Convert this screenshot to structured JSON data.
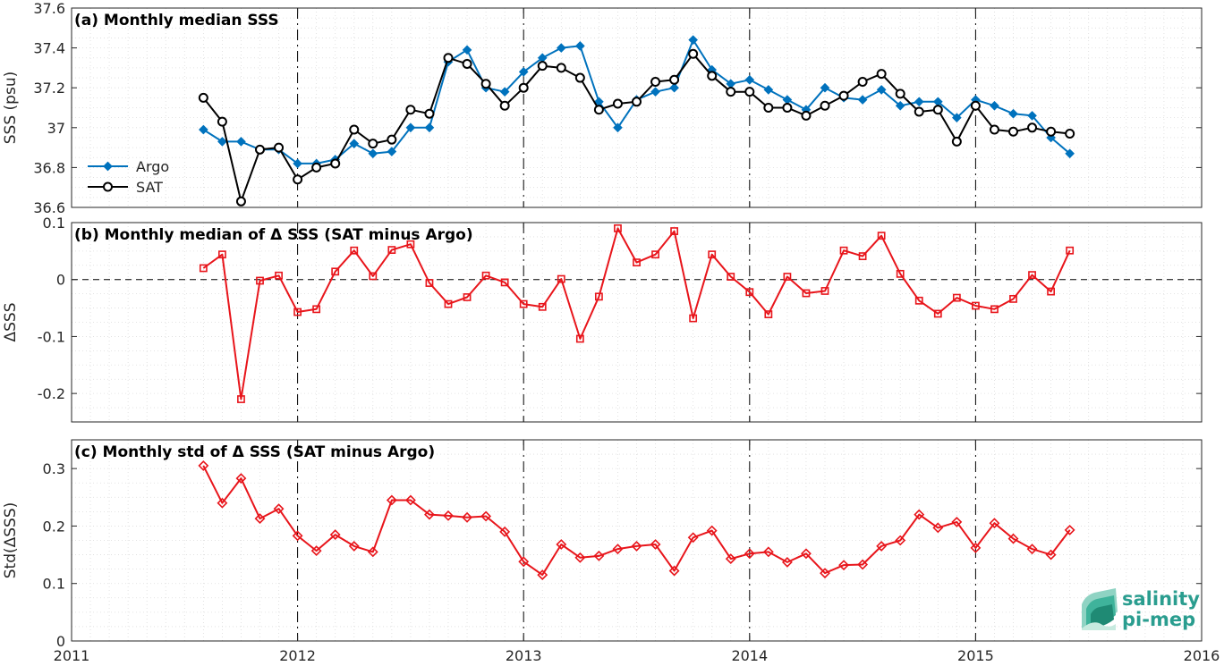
{
  "chart_data": [
    {
      "type": "line",
      "title": "(a) Monthly median SSS",
      "ylabel": "SSS (psu)",
      "xlim": [
        2011,
        2016
      ],
      "ylim": [
        36.6,
        37.6
      ],
      "yticks": [
        "36.6",
        "36.8",
        "37",
        "37.2",
        "37.4",
        "37.6"
      ],
      "legend": "left",
      "series": [
        {
          "name": "Argo",
          "color": "#0072BD",
          "marker": "diamond",
          "values": [
            36.99,
            36.93,
            36.93,
            36.89,
            36.89,
            36.82,
            36.82,
            36.84,
            36.92,
            36.87,
            36.88,
            37.0,
            37.0,
            37.33,
            37.39,
            37.2,
            37.18,
            37.28,
            37.35,
            37.4,
            37.41,
            37.13,
            37.0,
            37.14,
            37.18,
            37.2,
            37.44,
            37.29,
            37.22,
            37.24,
            37.19,
            37.14,
            37.09,
            37.2,
            37.15,
            37.14,
            37.19,
            37.11,
            37.13,
            37.13,
            37.05,
            37.14,
            37.11,
            37.07,
            37.06,
            36.95,
            36.87
          ]
        },
        {
          "name": "SAT",
          "color": "#000000",
          "marker": "circle",
          "values": [
            37.15,
            37.03,
            36.63,
            36.89,
            36.9,
            36.74,
            36.8,
            36.82,
            36.99,
            36.92,
            36.94,
            37.09,
            37.07,
            37.35,
            37.32,
            37.22,
            37.11,
            37.2,
            37.31,
            37.3,
            37.25,
            37.09,
            37.12,
            37.13,
            37.23,
            37.24,
            37.37,
            37.26,
            37.18,
            37.18,
            37.1,
            37.1,
            37.06,
            37.11,
            37.16,
            37.23,
            37.27,
            37.17,
            37.08,
            37.09,
            36.93,
            37.11,
            36.99,
            36.98,
            37.0,
            36.98,
            36.97
          ]
        }
      ]
    },
    {
      "type": "line",
      "title": "(b) Monthly median of Δ SSS (SAT minus Argo)",
      "ylabel": "ΔSSS",
      "xlim": [
        2011,
        2016
      ],
      "ylim": [
        -0.25,
        0.1
      ],
      "yticks": [
        "-0.2",
        "-0.1",
        "0",
        "0.1"
      ],
      "zero_line": true,
      "series": [
        {
          "name": "",
          "color": "#E8151B",
          "marker": "square",
          "values": [
            0.02,
            0.044,
            -0.21,
            -0.002,
            0.007,
            -0.057,
            -0.052,
            0.014,
            0.051,
            0.006,
            0.052,
            0.062,
            -0.006,
            -0.043,
            -0.031,
            0.007,
            -0.005,
            -0.043,
            -0.048,
            0.001,
            -0.104,
            -0.03,
            0.09,
            0.03,
            0.044,
            0.085,
            -0.068,
            0.044,
            0.005,
            -0.022,
            -0.061,
            0.005,
            -0.024,
            -0.02,
            0.051,
            0.041,
            0.077,
            0.01,
            -0.037,
            -0.06,
            -0.032,
            -0.046,
            -0.052,
            -0.034,
            0.008,
            -0.021,
            0.051
          ]
        }
      ]
    },
    {
      "type": "line",
      "title": "(c) Monthly std of Δ SSS (SAT minus Argo)",
      "ylabel": "Std(ΔSSS)",
      "xlim": [
        2011,
        2016
      ],
      "ylim": [
        0,
        0.35
      ],
      "yticks": [
        "0",
        "0.1",
        "0.2",
        "0.3"
      ],
      "xticks": [
        "2011",
        "2012",
        "2013",
        "2014",
        "2015",
        "2016"
      ],
      "series": [
        {
          "name": "",
          "color": "#E8151B",
          "marker": "diamond",
          "values": [
            0.305,
            0.24,
            0.283,
            0.213,
            0.23,
            0.183,
            0.157,
            0.185,
            0.165,
            0.155,
            0.245,
            0.245,
            0.22,
            0.218,
            0.215,
            0.217,
            0.19,
            0.138,
            0.115,
            0.168,
            0.145,
            0.148,
            0.16,
            0.165,
            0.168,
            0.122,
            0.18,
            0.192,
            0.143,
            0.152,
            0.155,
            0.137,
            0.152,
            0.118,
            0.132,
            0.133,
            0.165,
            0.175,
            0.22,
            0.197,
            0.207,
            0.162,
            0.205,
            0.178,
            0.16,
            0.15,
            0.193
          ]
        }
      ]
    }
  ],
  "shared_x": {
    "start_month": "2011-08",
    "n_points": 47,
    "step": "monthly"
  },
  "logo": {
    "line1": "salinity",
    "line2": "pi-mep",
    "color": "#2a9d8f"
  }
}
